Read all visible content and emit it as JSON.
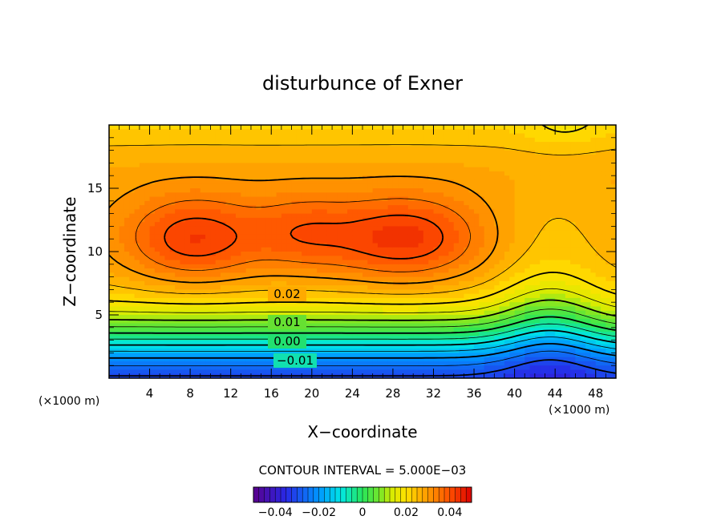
{
  "chart_data": {
    "type": "heatmap",
    "title": "disturbunce of Exner",
    "xlabel": "X−coordinate",
    "ylabel": "Z−coordinate",
    "x_unit": "(×1000 m)",
    "y_unit": "(×1000 m)",
    "xlim": [
      0,
      50
    ],
    "ylim": [
      0,
      20
    ],
    "x_ticks": [
      4,
      8,
      12,
      16,
      20,
      24,
      28,
      32,
      36,
      40,
      44,
      48
    ],
    "x_tick_labels": [
      "4",
      "8",
      "12",
      "16",
      "20",
      "24",
      "28",
      "32",
      "36",
      "40",
      "44",
      "48"
    ],
    "y_ticks": [
      5,
      10,
      15
    ],
    "y_tick_labels": [
      "5",
      "10",
      "15"
    ],
    "contour_interval_text": "CONTOUR INTERVAL = 5.000E−03",
    "contour_labels": [
      {
        "text": "0.02",
        "x": 17.8,
        "z": 6.5
      },
      {
        "text": "0.01",
        "x": 17.8,
        "z": 4.5
      },
      {
        "text": "0.00",
        "x": 17.8,
        "z": 3.0
      },
      {
        "text": "−0.01",
        "x": 18.8,
        "z": 1.5
      }
    ],
    "colorbar": {
      "range": [
        -0.05,
        0.05
      ],
      "tick_values": [
        -0.04,
        -0.02,
        0,
        0.02,
        0.04
      ],
      "tick_labels": [
        "−0.04",
        "−0.02",
        "0",
        "0.02",
        "0.04"
      ]
    }
  }
}
